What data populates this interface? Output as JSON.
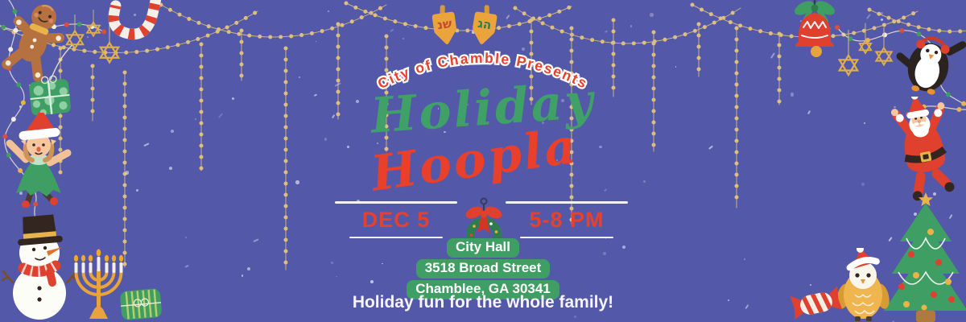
{
  "banner": {
    "presenter": "City of Chamble Presents",
    "title_line1": "Holiday",
    "title_line2": "Hoopla",
    "event": {
      "date": "DEC 5",
      "time": "5-8 PM"
    },
    "venue": {
      "name": "City Hall",
      "street": "3518 Broad Street",
      "city_state_zip": "Chamblee, GA 30341"
    },
    "tagline": "Holiday fun for the whole family!"
  },
  "dreidels": {
    "left_letters": "שנ",
    "right_letters": "הג"
  },
  "theme": {
    "background": "#5458a8",
    "accent_red": "#e9402c",
    "accent_green": "#3fa167",
    "pill_green": "#3f9e63",
    "garland_gold": "#debf80",
    "text_white": "#ffffff"
  },
  "decorations": [
    "gold-bead-garlands",
    "colored-string-lights",
    "gingerbread-man",
    "stars-of-david",
    "candy-cane",
    "polka-dot-gift",
    "elf",
    "snowman",
    "menorah",
    "striped-gift",
    "dreidels",
    "bell",
    "penguin",
    "santa",
    "christmas-tree",
    "owl",
    "wrapped-candy",
    "christmas-wreath"
  ]
}
